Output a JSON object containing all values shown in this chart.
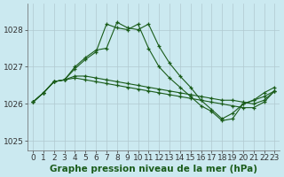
{
  "bg_color": "#cbe9f0",
  "grid_color": "#b0c8d0",
  "line_color": "#1a5c1a",
  "marker": "+",
  "series": [
    [
      1026.05,
      1026.3,
      1026.6,
      1026.65,
      1027.0,
      1027.25,
      1027.45,
      1027.5,
      1028.2,
      1028.05,
      1028.0,
      1028.15,
      1027.55,
      1027.1,
      1026.75,
      1026.45,
      1026.1,
      1025.85,
      1025.6,
      1025.75,
      1026.0,
      1026.1,
      1026.3,
      1026.45
    ],
    [
      1026.05,
      1026.3,
      1026.6,
      1026.65,
      1026.95,
      1027.2,
      1027.4,
      1028.15,
      1028.05,
      1028.0,
      1028.15,
      1027.5,
      1027.0,
      1026.7,
      1026.45,
      1026.2,
      1025.95,
      1025.8,
      1025.55,
      1025.6,
      1026.0,
      1026.1,
      1026.2,
      1026.35
    ],
    [
      1026.05,
      1026.3,
      1026.6,
      1026.65,
      1026.75,
      1026.75,
      1026.7,
      1026.65,
      1026.6,
      1026.55,
      1026.5,
      1026.45,
      1026.4,
      1026.35,
      1026.3,
      1026.25,
      1026.2,
      1026.15,
      1026.1,
      1026.1,
      1026.05,
      1026.0,
      1026.1,
      1026.35
    ],
    [
      1026.05,
      1026.3,
      1026.6,
      1026.65,
      1026.7,
      1026.65,
      1026.6,
      1026.55,
      1026.5,
      1026.45,
      1026.4,
      1026.35,
      1026.3,
      1026.25,
      1026.2,
      1026.15,
      1026.1,
      1026.05,
      1026.0,
      1025.95,
      1025.9,
      1025.9,
      1026.05,
      1026.35
    ]
  ],
  "xlim": [
    -0.5,
    23.5
  ],
  "ylim": [
    1024.75,
    1028.7
  ],
  "yticks": [
    1025,
    1026,
    1027,
    1028
  ],
  "xticks": [
    0,
    1,
    2,
    3,
    4,
    5,
    6,
    7,
    8,
    9,
    10,
    11,
    12,
    13,
    14,
    15,
    16,
    17,
    18,
    19,
    20,
    21,
    22,
    23
  ],
  "xlabel": "Graphe pression niveau de la mer (hPa)",
  "tick_fontsize": 6.5,
  "xlabel_fontsize": 7.5
}
